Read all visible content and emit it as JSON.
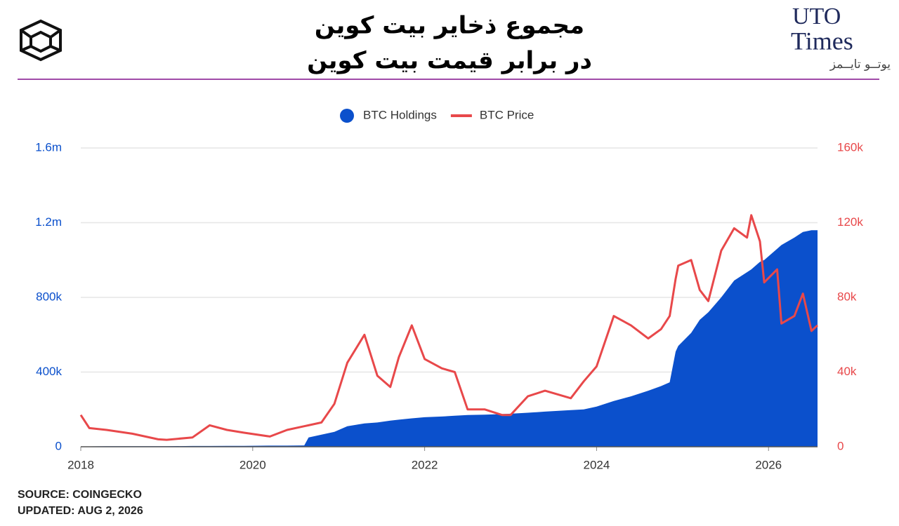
{
  "header": {
    "title_lines": [
      "مجموع ذخایر بیت کوین",
      "در برابر قیمت بیت کوین"
    ],
    "logo_line1": "UTO",
    "logo_line2": "Times",
    "logo_persian": "یوتــو تایــمز"
  },
  "chart_data": {
    "type": "area",
    "legend": "top",
    "grid": true,
    "x": [
      2018.0,
      2018.1,
      2018.3,
      2018.6,
      2018.9,
      2019.0,
      2019.3,
      2019.5,
      2019.7,
      2019.9,
      2020.2,
      2020.4,
      2020.6,
      2020.65,
      2020.8,
      2020.95,
      2021.1,
      2021.3,
      2021.45,
      2021.6,
      2021.7,
      2021.85,
      2022.0,
      2022.2,
      2022.35,
      2022.5,
      2022.7,
      2022.9,
      2023.0,
      2023.2,
      2023.4,
      2023.7,
      2023.85,
      2024.0,
      2024.2,
      2024.4,
      2024.6,
      2024.75,
      2024.85,
      2024.92,
      2024.95,
      2025.1,
      2025.2,
      2025.3,
      2025.45,
      2025.6,
      2025.75,
      2025.8,
      2025.9,
      2025.95,
      2026.1,
      2026.15,
      2026.3,
      2026.4,
      2026.5,
      2026.57
    ],
    "series": [
      {
        "name": "BTC Holdings",
        "type": "area",
        "color": "#0b50cc",
        "values": [
          2000,
          2000,
          3000,
          3000,
          3000,
          3000,
          4000,
          4000,
          5000,
          5000,
          6000,
          6000,
          7000,
          50000,
          65000,
          80000,
          110000,
          125000,
          130000,
          140000,
          145000,
          152000,
          158000,
          162000,
          166000,
          170000,
          172000,
          175000,
          177000,
          182000,
          188000,
          196000,
          200000,
          215000,
          245000,
          270000,
          300000,
          325000,
          345000,
          510000,
          540000,
          610000,
          680000,
          720000,
          800000,
          890000,
          935000,
          950000,
          990000,
          1000000,
          1060000,
          1080000,
          1120000,
          1150000,
          1160000,
          1160000
        ]
      },
      {
        "name": "BTC Price",
        "type": "line",
        "axis": "y2",
        "color": "#e8484a",
        "values": [
          17000,
          10000,
          9000,
          7000,
          4000,
          3700,
          5000,
          11500,
          9000,
          7500,
          5500,
          9000,
          11000,
          11500,
          13000,
          23000,
          45000,
          60000,
          38000,
          32000,
          48000,
          65000,
          47000,
          42000,
          40000,
          20000,
          20000,
          17000,
          17000,
          27000,
          30000,
          26000,
          35000,
          43000,
          70000,
          65000,
          58000,
          63000,
          70000,
          90000,
          97000,
          100000,
          84000,
          78000,
          105000,
          117000,
          112000,
          124000,
          110000,
          88000,
          95000,
          66000,
          70000,
          82000,
          62000,
          65000
        ]
      }
    ],
    "xlim": [
      2018,
      2026.57
    ],
    "xticks": [
      2018,
      2020,
      2022,
      2024,
      2026
    ],
    "ylim": [
      0,
      1600000
    ],
    "yticks": [
      0,
      {
        "value": 400000,
        "label": "400k"
      },
      {
        "value": 800000,
        "label": "800k"
      },
      {
        "value": 1200000,
        "label": "1.2m"
      },
      {
        "value": 1600000,
        "label": "1.6m"
      }
    ],
    "y2lim": [
      0,
      160000
    ],
    "y2ticks": [
      0,
      {
        "value": 40000,
        "label": "40k"
      },
      {
        "value": 80000,
        "label": "80k"
      },
      {
        "value": 120000,
        "label": "120k"
      },
      {
        "value": 160000,
        "label": "160k"
      }
    ]
  },
  "footer": {
    "source": "SOURCE: COINGECKO",
    "updated": "UPDATED: AUG 2, 2026"
  }
}
